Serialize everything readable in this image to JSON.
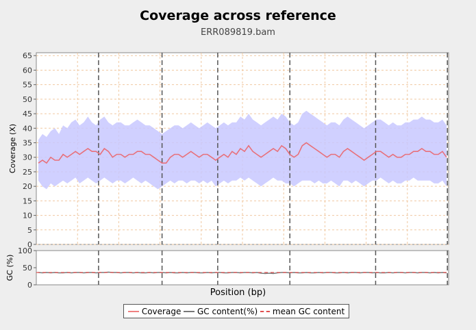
{
  "chart_data": {
    "type": "line",
    "title": "Coverage across reference",
    "subtitle": "ERR089819.bam",
    "xlabel": "Position (bp)",
    "coverage_panel": {
      "ylabel": "Coverage (X)",
      "ylim": [
        0,
        66
      ],
      "yticks": [
        "0",
        "5",
        "10",
        "15",
        "20",
        "25",
        "30",
        "35",
        "40",
        "45",
        "50",
        "55",
        "60",
        "65"
      ],
      "grid": true,
      "contig_boundaries": [
        0.151,
        0.305,
        0.44,
        0.615,
        0.823,
        0.997
      ],
      "series": [
        {
          "name": "Coverage",
          "values": [
            28,
            29,
            28,
            30,
            29,
            29,
            31,
            30,
            31,
            32,
            31,
            32,
            33,
            32,
            32,
            31,
            33,
            32,
            30,
            31,
            31,
            30,
            31,
            31,
            32,
            32,
            31,
            31,
            30,
            29,
            28,
            28,
            30,
            31,
            31,
            30,
            31,
            32,
            31,
            30,
            31,
            31,
            30,
            29,
            30,
            31,
            30,
            32,
            31,
            33,
            32,
            34,
            32,
            31,
            30,
            31,
            32,
            33,
            32,
            34,
            33,
            31,
            30,
            31,
            34,
            35,
            34,
            33,
            32,
            31,
            30,
            31,
            31,
            30,
            32,
            33,
            32,
            31,
            30,
            29,
            30,
            31,
            32,
            32,
            31,
            30,
            31,
            30,
            30,
            31,
            31,
            32,
            32,
            33,
            32,
            32,
            31,
            31,
            32,
            30
          ]
        }
      ],
      "band_low": [
        22,
        20,
        19,
        21,
        20,
        21,
        22,
        21,
        22,
        23,
        21,
        22,
        23,
        22,
        21,
        22,
        23,
        22,
        21,
        22,
        22,
        21,
        22,
        23,
        22,
        21,
        22,
        21,
        20,
        19,
        20,
        21,
        22,
        21,
        22,
        22,
        21,
        22,
        22,
        21,
        22,
        21,
        22,
        20,
        21,
        22,
        21,
        22,
        22,
        23,
        22,
        23,
        22,
        21,
        20,
        21,
        22,
        23,
        22,
        22,
        21,
        21,
        20,
        21,
        22,
        22,
        22,
        21,
        22,
        21,
        21,
        22,
        21,
        20,
        22,
        22,
        21,
        22,
        21,
        20,
        21,
        22,
        22,
        23,
        22,
        21,
        22,
        21,
        21,
        22,
        22,
        23,
        22,
        22,
        22,
        22,
        21,
        21,
        22,
        20
      ],
      "band_high": [
        36,
        38,
        37,
        39,
        40,
        38,
        41,
        40,
        42,
        43,
        41,
        42,
        44,
        42,
        41,
        43,
        44,
        42,
        41,
        42,
        42,
        41,
        41,
        42,
        43,
        42,
        41,
        41,
        40,
        39,
        38,
        39,
        40,
        41,
        41,
        40,
        41,
        42,
        41,
        40,
        41,
        42,
        41,
        40,
        41,
        42,
        41,
        42,
        42,
        44,
        43,
        45,
        43,
        42,
        41,
        42,
        43,
        44,
        43,
        45,
        44,
        42,
        41,
        42,
        45,
        46,
        45,
        44,
        43,
        42,
        41,
        42,
        42,
        41,
        43,
        44,
        43,
        42,
        41,
        40,
        41,
        42,
        43,
        43,
        42,
        41,
        42,
        41,
        41,
        42,
        42,
        43,
        43,
        44,
        43,
        43,
        42,
        42,
        43,
        41
      ]
    },
    "gc_panel": {
      "ylabel": "GC (%)",
      "ylim": [
        0,
        100
      ],
      "yticks": [
        "0",
        "50",
        "100"
      ],
      "series": [
        {
          "name": "GC content(%)",
          "values": [
            36,
            35,
            36,
            35,
            36,
            35,
            35,
            36,
            35,
            36,
            36,
            35,
            36,
            36,
            35,
            36,
            36,
            37,
            36,
            36,
            35,
            36,
            36,
            35,
            36,
            35,
            35,
            36,
            35,
            36,
            36,
            35,
            36,
            35,
            35,
            36,
            35,
            36,
            36,
            35,
            35,
            36,
            35,
            36,
            36,
            35,
            35,
            36,
            36,
            35,
            36,
            36,
            35,
            36,
            34,
            33,
            34,
            33,
            35,
            36,
            36,
            35,
            36,
            35,
            35,
            36,
            35,
            35,
            36,
            35,
            36,
            36,
            35,
            35,
            36,
            35,
            36,
            36,
            35,
            36,
            36,
            35,
            36,
            35,
            35,
            36,
            35,
            36,
            36,
            35,
            36,
            36,
            35,
            36,
            36,
            35,
            36,
            35,
            36,
            35
          ]
        }
      ],
      "mean_gc": 36
    },
    "legend": {
      "placement": "bottom",
      "items": [
        "Coverage",
        "GC content(%)",
        "mean GC content"
      ]
    },
    "colors": {
      "coverage": "#e8707a",
      "band": "#c8c8ff",
      "gc": "#777777",
      "mean": "#e05050",
      "grid": "#f0c8a0",
      "boundary": "#555555"
    }
  }
}
